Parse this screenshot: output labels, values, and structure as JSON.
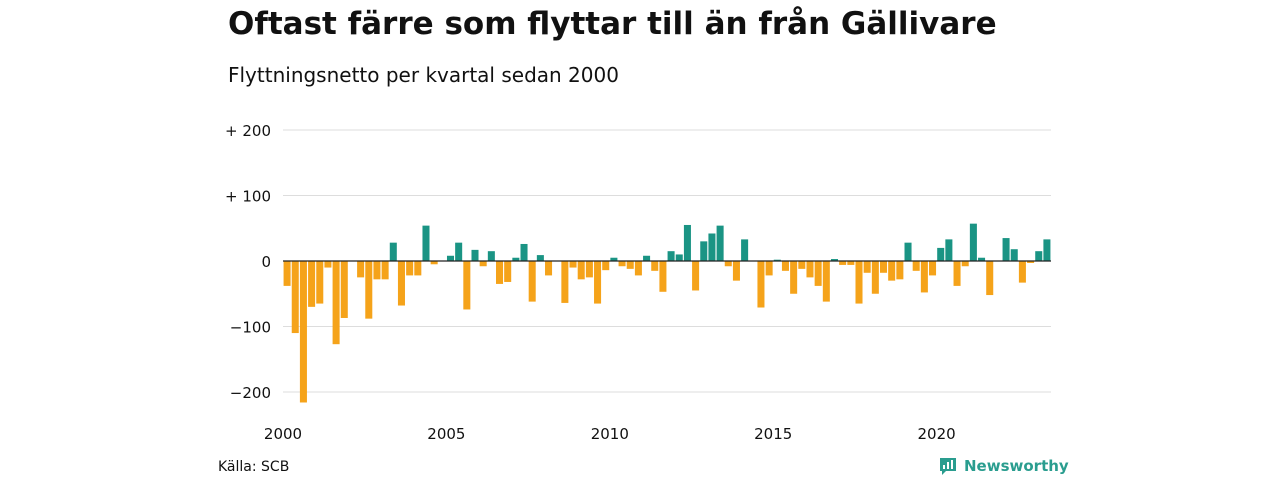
{
  "header": {
    "title": "Oftast färre som flyttar till än från Gällivare",
    "subtitle": "Flyttningsnetto per kvartal sedan 2000"
  },
  "footer": {
    "source": "Källa: SCB",
    "brand": "Newsworthy"
  },
  "colors": {
    "positive": "#1a9484",
    "negative": "#f5a31a",
    "grid": "#dddddd",
    "zero_line": "#222222",
    "brand": "#2a9d8f"
  },
  "chart_data": {
    "type": "bar",
    "ylim": [
      -220,
      200
    ],
    "yticks": [
      {
        "value": 200,
        "label": "+ 200"
      },
      {
        "value": 100,
        "label": "+ 100"
      },
      {
        "value": 0,
        "label": "0"
      },
      {
        "value": -100,
        "label": "−100"
      },
      {
        "value": -200,
        "label": "−200"
      }
    ],
    "xticks": [
      {
        "year": 2000,
        "label": "2000"
      },
      {
        "year": 2005,
        "label": "2005"
      },
      {
        "year": 2010,
        "label": "2010"
      },
      {
        "year": 2015,
        "label": "2015"
      },
      {
        "year": 2020,
        "label": "2020"
      }
    ],
    "start_quarter": "2000Q1",
    "grid": true,
    "legend": "none",
    "values": [
      -38,
      -110,
      -216,
      -70,
      -65,
      -10,
      -127,
      -87,
      0,
      -25,
      -88,
      -28,
      -28,
      28,
      -68,
      -22,
      -22,
      54,
      -5,
      0,
      8,
      28,
      -74,
      17,
      -8,
      15,
      -35,
      -32,
      5,
      26,
      -62,
      9,
      -22,
      0,
      -64,
      -10,
      -28,
      -25,
      -65,
      -14,
      5,
      -8,
      -12,
      -22,
      8,
      -15,
      -47,
      15,
      10,
      55,
      -45,
      30,
      42,
      54,
      -8,
      -30,
      33,
      0,
      -71,
      -22,
      2,
      -15,
      -50,
      -12,
      -25,
      -38,
      -62,
      3,
      -6,
      -6,
      -65,
      -18,
      -50,
      -18,
      -30,
      -28,
      28,
      -15,
      -48,
      -22,
      20,
      33,
      -38,
      -8,
      57,
      5,
      -52,
      0,
      35,
      18,
      -33,
      -3,
      15,
      33
    ]
  }
}
